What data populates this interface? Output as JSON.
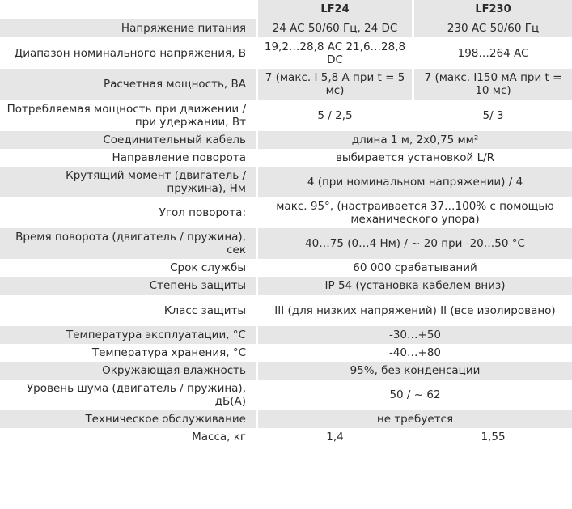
{
  "header": {
    "col1": "LF24",
    "col2": "LF230"
  },
  "rows": [
    {
      "label": "Напряжение питания",
      "v1": "24 AC 50/60 Гц, 24 DC",
      "v2": "230 AC 50/60 Гц"
    },
    {
      "label": "Диапазон номинального напряжения, В",
      "v1": "19,2…28,8 AC 21,6…28,8 DC",
      "v2": "198…264 AC"
    },
    {
      "label": "Расчетная мощность, ВА",
      "v1": "7 (макс. I 5,8 А при t = 5 мс)",
      "v2": "7 (макс. I150 мА при t = 10 мс)"
    },
    {
      "label": "Потребляемая мощность при движении / при удержании, Вт",
      "v1": "5 / 2,5",
      "v2": "5/ 3"
    },
    {
      "label": "Соединительный кабель",
      "value": "длина 1 м, 2х0,75 мм²"
    },
    {
      "label": "Направление поворота",
      "value": "выбирается установкой L/R"
    },
    {
      "label": "Крутящий момент (двигатель / пружина), Нм",
      "value": "4 (при номинальном напряжении) / 4"
    },
    {
      "label": "Угол поворота:",
      "value": "макс. 95°, (настраивается 37…100% с помощью механического упора)"
    },
    {
      "label": "Время поворота (двигатель / пружина), сек",
      "value": "40…75 (0…4 Нм) / ~ 20 при -20…50 °С"
    },
    {
      "label": "Срок службы",
      "value": "60 000 срабатываний"
    },
    {
      "label": "Степень защиты",
      "value": "IP 54 (установка кабелем вниз)"
    },
    {
      "label": "Класс защиты",
      "value": "III (для низких напряжений) II (все изолировано)"
    },
    {
      "label": "Температура эксплуатации, °С",
      "value": "-30…+50"
    },
    {
      "label": "Температура хранения, °С",
      "value": "-40…+80"
    },
    {
      "label": "Окружающая влажность",
      "value": "95%, без конденсации"
    },
    {
      "label": "Уровень шума (двигатель / пружина), дБ(А)",
      "value": "50 / ~ 62"
    },
    {
      "label": "Техническое обслуживание",
      "value": "не требуется"
    },
    {
      "label": "Масса, кг",
      "v1": "1,4",
      "v2": "1,55"
    }
  ]
}
